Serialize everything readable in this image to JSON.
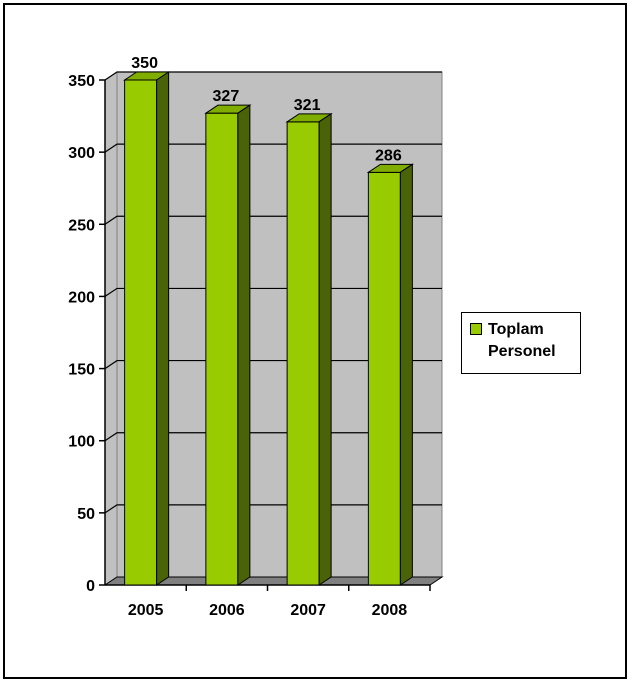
{
  "chart_data": {
    "type": "bar",
    "categories": [
      "2005",
      "2006",
      "2007",
      "2008"
    ],
    "series": [
      {
        "name": "Toplam Personel",
        "values": [
          350,
          327,
          321,
          286
        ]
      }
    ],
    "data_labels": [
      "350",
      "327",
      "321",
      "286"
    ],
    "yticks": [
      "0",
      "50",
      "100",
      "150",
      "200",
      "250",
      "300",
      "350"
    ],
    "ylim": [
      0,
      350
    ],
    "grid": true,
    "legend_position": "right",
    "style": "3d-column",
    "colors": {
      "bar_front": "#99cc00",
      "bar_top": "#7fae00",
      "bar_side": "#4a6308",
      "plot_background": "#c0c0c0",
      "floor": "#808080",
      "gridline": "#000000"
    }
  },
  "legend": {
    "label": "Toplam Personel"
  }
}
